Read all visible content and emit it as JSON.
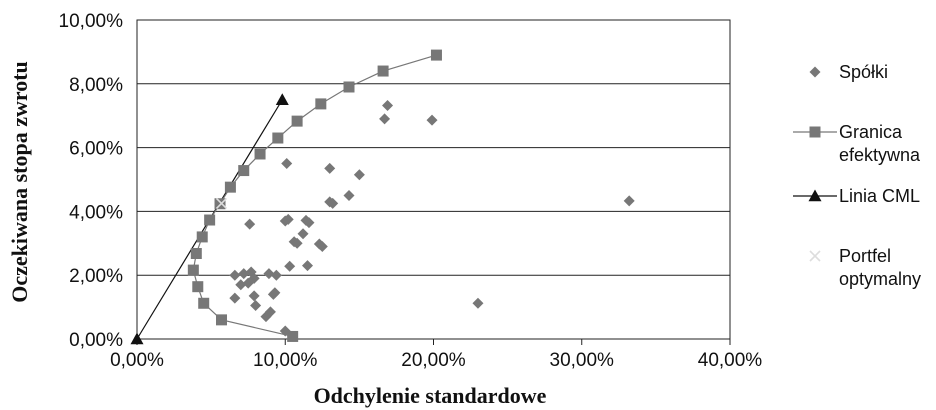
{
  "chart_data": {
    "type": "scatter",
    "title": "",
    "xlabel": "Odchylenie standardowe",
    "ylabel": "Oczekiwana stopa zwrotu",
    "xlim": [
      0,
      0.4
    ],
    "ylim": [
      0,
      0.1
    ],
    "x_ticks": [
      {
        "value": 0.0,
        "label": "0,00%"
      },
      {
        "value": 0.1,
        "label": "10,00%"
      },
      {
        "value": 0.2,
        "label": "20,00%"
      },
      {
        "value": 0.3,
        "label": "30,00%"
      },
      {
        "value": 0.4,
        "label": "40,00%"
      }
    ],
    "y_ticks": [
      {
        "value": 0.0,
        "label": "0,00%"
      },
      {
        "value": 0.02,
        "label": "2,00%"
      },
      {
        "value": 0.04,
        "label": "4,00%"
      },
      {
        "value": 0.06,
        "label": "6,00%"
      },
      {
        "value": 0.08,
        "label": "8,00%"
      },
      {
        "value": 0.1,
        "label": "10,00%"
      }
    ],
    "grid": "horizontal",
    "legend_position": "right",
    "series": [
      {
        "name": "Spółki",
        "marker": "diamond",
        "color": "#777777",
        "points": [
          [
            0.167,
            0.069
          ],
          [
            0.169,
            0.0732
          ],
          [
            0.199,
            0.0686
          ],
          [
            0.332,
            0.0433
          ],
          [
            0.23,
            0.0112
          ],
          [
            0.101,
            0.055
          ],
          [
            0.13,
            0.0535
          ],
          [
            0.15,
            0.0515
          ],
          [
            0.143,
            0.045
          ],
          [
            0.13,
            0.043
          ],
          [
            0.132,
            0.0425
          ],
          [
            0.1,
            0.037
          ],
          [
            0.102,
            0.0375
          ],
          [
            0.114,
            0.0372
          ],
          [
            0.116,
            0.0365
          ],
          [
            0.076,
            0.036
          ],
          [
            0.112,
            0.033
          ],
          [
            0.106,
            0.0305
          ],
          [
            0.108,
            0.03
          ],
          [
            0.123,
            0.0298
          ],
          [
            0.125,
            0.029
          ],
          [
            0.103,
            0.0228
          ],
          [
            0.115,
            0.023
          ],
          [
            0.066,
            0.02
          ],
          [
            0.072,
            0.0205
          ],
          [
            0.077,
            0.021
          ],
          [
            0.079,
            0.019
          ],
          [
            0.075,
            0.0175
          ],
          [
            0.07,
            0.017
          ],
          [
            0.089,
            0.0205
          ],
          [
            0.094,
            0.02
          ],
          [
            0.093,
            0.0145
          ],
          [
            0.092,
            0.014
          ],
          [
            0.079,
            0.0135
          ],
          [
            0.066,
            0.0128
          ],
          [
            0.08,
            0.0105
          ],
          [
            0.09,
            0.0085
          ],
          [
            0.087,
            0.007
          ],
          [
            0.1,
            0.0025
          ]
        ]
      },
      {
        "name": "Granica efektywna",
        "name_lines": [
          "Granica",
          "efektywna"
        ],
        "marker": "square",
        "color": "#777777",
        "points": [
          [
            0.202,
            0.089
          ],
          [
            0.166,
            0.084
          ],
          [
            0.143,
            0.079
          ],
          [
            0.124,
            0.0737
          ],
          [
            0.108,
            0.0683
          ],
          [
            0.095,
            0.063
          ],
          [
            0.083,
            0.058
          ],
          [
            0.072,
            0.0528
          ],
          [
            0.063,
            0.0476
          ],
          [
            0.056,
            0.0424
          ],
          [
            0.049,
            0.0373
          ],
          [
            0.044,
            0.032
          ],
          [
            0.04,
            0.0268
          ],
          [
            0.038,
            0.0216
          ],
          [
            0.041,
            0.0164
          ],
          [
            0.045,
            0.0112
          ],
          [
            0.057,
            0.006
          ],
          [
            0.105,
            0.0008
          ]
        ]
      },
      {
        "name": "Linia CML",
        "marker": "triangle",
        "color": "#111111",
        "points": [
          [
            0.0,
            0.0
          ],
          [
            0.098,
            0.075
          ]
        ]
      },
      {
        "name": "Portfel optymalny",
        "name_lines": [
          "Portfel",
          "optymalny"
        ],
        "marker": "x",
        "color": "#dddddd",
        "points": [
          [
            0.057,
            0.0425
          ]
        ]
      }
    ]
  }
}
